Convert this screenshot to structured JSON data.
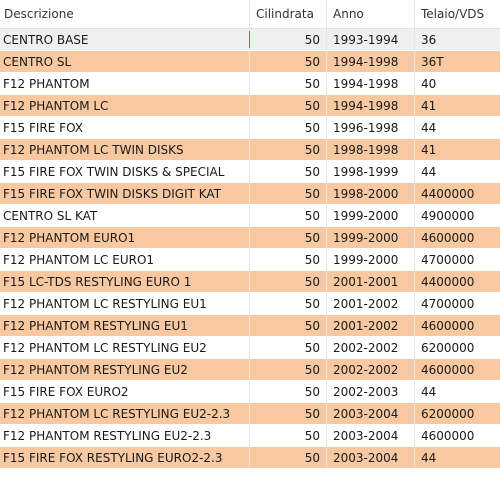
{
  "columns": [
    "Descrizione",
    "Cilindrata",
    "Anno",
    "Telaio/VDS"
  ],
  "rows": [
    {
      "desc": "CENTRO BASE",
      "cc": "50",
      "year": "1993-1994",
      "frame": "36"
    },
    {
      "desc": "CENTRO SL",
      "cc": "50",
      "year": "1994-1998",
      "frame": "36T"
    },
    {
      "desc": "F12 PHANTOM",
      "cc": "50",
      "year": "1994-1998",
      "frame": "40"
    },
    {
      "desc": "F12 PHANTOM LC",
      "cc": "50",
      "year": "1994-1998",
      "frame": "41"
    },
    {
      "desc": "F15 FIRE FOX",
      "cc": "50",
      "year": "1996-1998",
      "frame": "44"
    },
    {
      "desc": "F12 PHANTOM LC TWIN DISKS",
      "cc": "50",
      "year": "1998-1998",
      "frame": "41"
    },
    {
      "desc": "F15 FIRE FOX TWIN DISKS & SPECIAL",
      "cc": "50",
      "year": "1998-1999",
      "frame": "44"
    },
    {
      "desc": "F15 FIRE FOX TWIN DISKS DIGIT KAT",
      "cc": "50",
      "year": "1998-2000",
      "frame": "4400000"
    },
    {
      "desc": "CENTRO SL KAT",
      "cc": "50",
      "year": "1999-2000",
      "frame": "4900000"
    },
    {
      "desc": "F12 PHANTOM EURO1",
      "cc": "50",
      "year": "1999-2000",
      "frame": "4600000"
    },
    {
      "desc": "F12 PHANTOM LC EURO1",
      "cc": "50",
      "year": "1999-2000",
      "frame": "4700000"
    },
    {
      "desc": "F15 LC-TDS RESTYLING EURO 1",
      "cc": "50",
      "year": "2001-2001",
      "frame": "4400000"
    },
    {
      "desc": "F12 PHANTOM LC RESTYLING EU1",
      "cc": "50",
      "year": "2001-2002",
      "frame": "4700000"
    },
    {
      "desc": "F12 PHANTOM RESTYLING EU1",
      "cc": "50",
      "year": "2001-2002",
      "frame": "4600000"
    },
    {
      "desc": "F12 PHANTOM LC RESTYLING EU2",
      "cc": "50",
      "year": "2002-2002",
      "frame": "6200000"
    },
    {
      "desc": "F12 PHANTOM RESTYLING EU2",
      "cc": "50",
      "year": "2002-2002",
      "frame": "4600000"
    },
    {
      "desc": "F15 FIRE FOX EURO2",
      "cc": "50",
      "year": "2002-2003",
      "frame": "44"
    },
    {
      "desc": "F12 PHANTOM LC RESTYLING EU2-2.3",
      "cc": "50",
      "year": "2003-2004",
      "frame": "6200000"
    },
    {
      "desc": "F12 PHANTOM RESTYLING EU2-2.3",
      "cc": "50",
      "year": "2003-2004",
      "frame": "4600000"
    },
    {
      "desc": "F15 FIRE FOX RESTYLING EURO2-2.3",
      "cc": "50",
      "year": "2003-2004",
      "frame": "44"
    }
  ],
  "colors": {
    "header_bg": "#ffffff",
    "first_row_bg": "#efefef",
    "alt_row_bg": "#f8c8a0",
    "plain_row_bg": "#ffffff",
    "cursor": "#3a7bd5"
  }
}
